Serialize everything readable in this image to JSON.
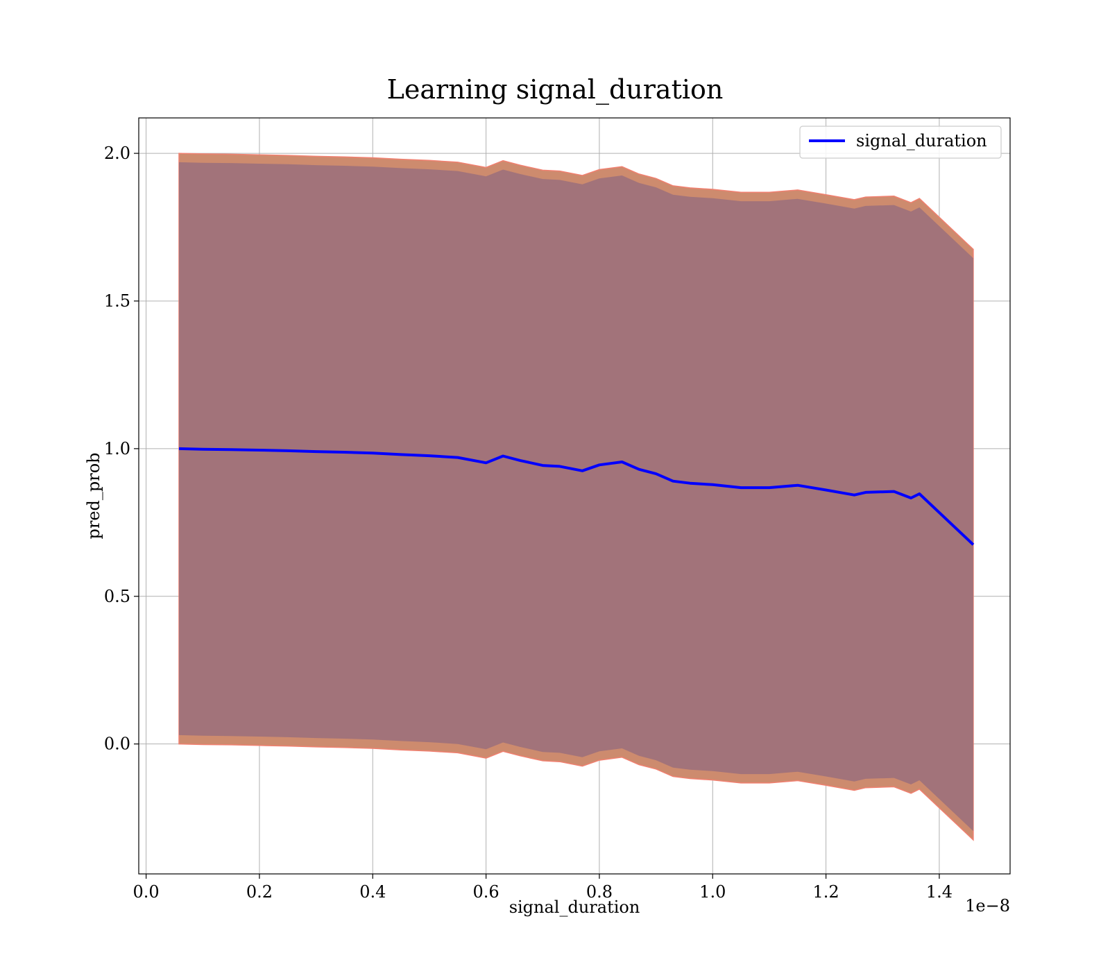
{
  "chart_data": {
    "type": "line",
    "title": "Learning signal_duration",
    "xlabel": "signal_duration",
    "ylabel": "pred_prob",
    "x_offset_label": "1e−8",
    "xlim": [
      -0.013,
      1.525
    ],
    "ylim": [
      -0.44,
      2.12
    ],
    "x_ticks": [
      0.0,
      0.2,
      0.4,
      0.6,
      0.8,
      1.0,
      1.2,
      1.4
    ],
    "x_tick_labels": [
      "0.0",
      "0.2",
      "0.4",
      "0.6",
      "0.8",
      "1.0",
      "1.2",
      "1.4"
    ],
    "y_ticks": [
      0.0,
      0.5,
      1.0,
      1.5,
      2.0
    ],
    "y_tick_labels": [
      "0.0",
      "0.5",
      "1.0",
      "1.5",
      "2.0"
    ],
    "grid": true,
    "legend": {
      "placement": "top-right",
      "entries": [
        "signal_duration"
      ]
    },
    "colors": {
      "line": "#0000ff",
      "band_outer": "#cd8b6e",
      "band_outer_edge": "#f08070",
      "band_inner": "#a2737a",
      "grid": "#b0b0b0"
    },
    "series": [
      {
        "name": "signal_duration",
        "x": [
          0.058,
          0.1,
          0.15,
          0.2,
          0.25,
          0.3,
          0.35,
          0.4,
          0.45,
          0.5,
          0.55,
          0.6,
          0.63,
          0.66,
          0.7,
          0.73,
          0.77,
          0.8,
          0.84,
          0.87,
          0.9,
          0.93,
          0.96,
          1.0,
          1.05,
          1.1,
          1.15,
          1.2,
          1.25,
          1.27,
          1.32,
          1.35,
          1.365,
          1.46
        ],
        "y": [
          1.0,
          0.998,
          0.997,
          0.995,
          0.993,
          0.99,
          0.988,
          0.985,
          0.98,
          0.976,
          0.97,
          0.952,
          0.975,
          0.96,
          0.943,
          0.94,
          0.925,
          0.945,
          0.955,
          0.93,
          0.915,
          0.89,
          0.883,
          0.878,
          0.868,
          0.868,
          0.876,
          0.86,
          0.843,
          0.852,
          0.855,
          0.833,
          0.847,
          0.675
        ]
      }
    ],
    "band_outer_half_width": 1.0,
    "band_inner_half_width": 0.97
  }
}
